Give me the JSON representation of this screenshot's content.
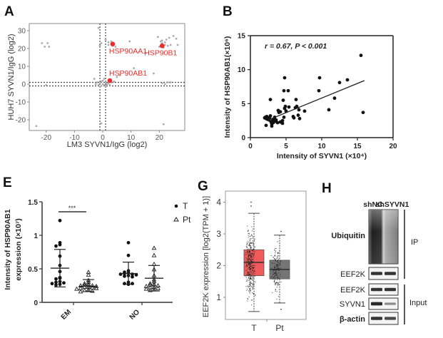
{
  "chart_data": [
    {
      "panel": "A",
      "type": "scatter",
      "xlabel": "LM3 SYVN1/IgG (log2)",
      "ylabel": "HUH7 SYVN1/IgG (log2)",
      "xlim": [
        -26,
        29
      ],
      "ylim": [
        -26,
        34
      ],
      "xticks": [
        -20,
        -10,
        0,
        10,
        20
      ],
      "yticks": [
        30,
        20,
        10,
        0,
        -10,
        -20
      ],
      "threshold_lines": {
        "x": [
          -1,
          1
        ],
        "y": [
          1,
          -1
        ]
      },
      "grey_points": [
        [
          -21.5,
          23
        ],
        [
          -20.5,
          21
        ],
        [
          -19.5,
          23
        ],
        [
          -19,
          21
        ],
        [
          -23.5,
          -23.5
        ],
        [
          -1.5,
          31.5
        ],
        [
          -1,
          21.5
        ],
        [
          -0.5,
          23
        ],
        [
          1,
          25
        ],
        [
          2,
          22
        ],
        [
          3,
          24
        ],
        [
          3.5,
          21.5
        ],
        [
          2,
          23.5
        ],
        [
          4.5,
          21
        ],
        [
          9.5,
          24
        ],
        [
          19.5,
          26.5
        ],
        [
          20,
          21
        ],
        [
          20.5,
          24
        ],
        [
          21,
          23
        ],
        [
          22,
          22
        ],
        [
          22.5,
          25
        ],
        [
          23,
          21.5
        ],
        [
          21.5,
          20.5
        ],
        [
          23.5,
          26
        ],
        [
          24,
          22
        ],
        [
          25,
          27
        ],
        [
          26,
          25.5
        ],
        [
          26.5,
          22
        ],
        [
          22,
          23.5
        ],
        [
          21,
          24.5
        ],
        [
          20.8,
          22.5
        ],
        [
          11,
          9
        ],
        [
          18,
          6
        ],
        [
          5,
          4
        ],
        [
          6,
          5
        ],
        [
          21,
          0.5
        ],
        [
          22,
          0
        ],
        [
          23,
          1
        ],
        [
          24,
          1
        ],
        [
          21.5,
          -22.5
        ],
        [
          -0.5,
          -22
        ],
        [
          -3,
          3
        ],
        [
          -2,
          1
        ],
        [
          -1,
          0.5
        ],
        [
          -0.5,
          -1
        ],
        [
          0,
          2
        ],
        [
          0,
          0
        ],
        [
          0.5,
          -0.5
        ],
        [
          1,
          1
        ],
        [
          1.5,
          0
        ],
        [
          2,
          0.5
        ],
        [
          -1.5,
          -0.5
        ],
        [
          0.5,
          3
        ],
        [
          1,
          -1
        ],
        [
          3,
          1
        ],
        [
          4,
          1.5
        ],
        [
          -2.5,
          0
        ],
        [
          -1,
          -1.5
        ],
        [
          -0.5,
          1.5
        ],
        [
          2.5,
          -0.5
        ],
        [
          -20,
          -0.5
        ]
      ],
      "highlighted": [
        {
          "label": "HSP90AA1",
          "x": 3.5,
          "y": 22.5
        },
        {
          "label": "HSP90B1",
          "x": 21,
          "y": 21.5
        },
        {
          "label": "HSP90AB1",
          "x": 2.5,
          "y": 2
        }
      ],
      "highlight_color": "#ee2b2b"
    },
    {
      "panel": "B",
      "type": "scatter",
      "xlabel": "Intensity of SYVN1 (×10⁴)",
      "ylabel": "Intensity of HSP90AB1(×10⁶)",
      "xlim": [
        0,
        20
      ],
      "ylim": [
        0,
        15
      ],
      "xticks": [
        0,
        5,
        10,
        15,
        20
      ],
      "yticks": [
        0,
        5,
        10,
        15
      ],
      "annotation": "r = 0.67, P < 0.001",
      "fit_line": {
        "x": [
          2.5,
          16
        ],
        "y": [
          2.6,
          8.4
        ]
      },
      "points": [
        [
          2.0,
          2.9
        ],
        [
          2.1,
          3.0
        ],
        [
          2.2,
          2.8
        ],
        [
          2.3,
          3.1
        ],
        [
          2.4,
          2.7
        ],
        [
          2.5,
          2.9
        ],
        [
          2.2,
          1.8
        ],
        [
          2.6,
          2.6
        ],
        [
          2.7,
          2.8
        ],
        [
          2.8,
          3.2
        ],
        [
          2.8,
          5.6
        ],
        [
          2.9,
          2.3
        ],
        [
          3.0,
          1.7
        ],
        [
          3.0,
          2.0
        ],
        [
          3.1,
          2.5
        ],
        [
          3.2,
          2.2
        ],
        [
          3.3,
          2.7
        ],
        [
          3.5,
          2.4
        ],
        [
          3.6,
          2.6
        ],
        [
          3.8,
          2.2
        ],
        [
          3.9,
          4.0
        ],
        [
          4.0,
          3.7
        ],
        [
          4.2,
          2.3
        ],
        [
          4.5,
          2.1
        ],
        [
          4.5,
          2.5
        ],
        [
          4.6,
          5.5
        ],
        [
          4.7,
          3.0
        ],
        [
          4.7,
          6.9
        ],
        [
          4.8,
          8.8
        ],
        [
          4.8,
          4.3
        ],
        [
          4.9,
          4.6
        ],
        [
          5.0,
          3.9
        ],
        [
          5.3,
          6.9
        ],
        [
          5.4,
          4.5
        ],
        [
          6.0,
          3.1
        ],
        [
          6.1,
          2.9
        ],
        [
          6.3,
          4.4
        ],
        [
          6.4,
          5.6
        ],
        [
          6.5,
          4.6
        ],
        [
          6.7,
          3.3
        ],
        [
          6.8,
          4.1
        ],
        [
          6.9,
          2.8
        ],
        [
          7.6,
          3.9
        ],
        [
          9.7,
          8.8
        ],
        [
          9.6,
          6.9
        ],
        [
          11.0,
          4.1
        ],
        [
          11.8,
          5.8
        ],
        [
          12.5,
          8.1
        ],
        [
          13.6,
          8.5
        ],
        [
          15.5,
          12.1
        ],
        [
          15.8,
          3.7
        ],
        [
          4.2,
          3.8
        ],
        [
          3.4,
          3.0
        ]
      ]
    },
    {
      "panel": "E",
      "type": "scatter",
      "ylabel": "Intensity of HSP90AB1 expression (×10⁷)",
      "ylim": [
        0,
        1.5
      ],
      "yticks": [
        0,
        0.5,
        1,
        1.5
      ],
      "categories": [
        "EM",
        "NO"
      ],
      "significance": {
        "groups": "EM T vs Pt",
        "label": "***"
      },
      "legend": [
        {
          "name": "T",
          "marker": "dot"
        },
        {
          "name": "Pt",
          "marker": "triangle"
        }
      ],
      "legend_position": "top-right",
      "series": [
        {
          "name": "T",
          "category": "EM",
          "mean": 0.51,
          "upper": 0.79,
          "lower": 0.23,
          "values": [
            1.22,
            0.89,
            0.86,
            0.84,
            0.69,
            0.55,
            0.46,
            0.37,
            0.36,
            0.35,
            0.31,
            0.3,
            0.29,
            0.28,
            0.27,
            0.26
          ]
        },
        {
          "name": "Pt",
          "category": "EM",
          "mean": 0.24,
          "upper": 0.34,
          "lower": 0.16,
          "values": [
            0.45,
            0.41,
            0.33,
            0.3,
            0.28,
            0.27,
            0.26,
            0.25,
            0.24,
            0.23,
            0.22,
            0.21,
            0.2,
            0.19,
            0.18,
            0.17,
            0.16,
            0.25,
            0.23,
            0.21
          ]
        },
        {
          "name": "T",
          "category": "NO",
          "mean": 0.43,
          "upper": 0.6,
          "lower": 0.27,
          "values": [
            0.89,
            0.7,
            0.47,
            0.45,
            0.44,
            0.43,
            0.42,
            0.42,
            0.41,
            0.4,
            0.39,
            0.38,
            0.3,
            0.28,
            0.28,
            0.27
          ]
        },
        {
          "name": "Pt",
          "category": "NO",
          "mean": 0.36,
          "upper": 0.55,
          "lower": 0.17,
          "values": [
            0.81,
            0.7,
            0.57,
            0.49,
            0.4,
            0.34,
            0.31,
            0.28,
            0.27,
            0.26,
            0.25,
            0.24,
            0.23,
            0.22,
            0.21,
            0.2,
            0.19,
            0.18
          ]
        }
      ]
    },
    {
      "panel": "G",
      "type": "box",
      "ylabel": "EEF2K expression [log2(TPM + 1)]",
      "ylim": [
        0.3,
        4.35
      ],
      "yticks": [
        1,
        2,
        3,
        4
      ],
      "categories": [
        "T",
        "Pt"
      ],
      "series": [
        {
          "name": "T",
          "color": "#f05a5a",
          "q1": 1.68,
          "median": 2.1,
          "q3": 2.5,
          "whisker_low": 0.55,
          "whisker_high": 3.65,
          "outliers": [
            4.0,
            3.88
          ],
          "n_points": 369
        },
        {
          "name": "Pt",
          "color": "#757575",
          "q1": 1.58,
          "median": 1.88,
          "q3": 2.17,
          "whisker_low": 0.82,
          "whisker_high": 2.96,
          "outliers": [
            3.08,
            0.62
          ],
          "n_points": 160
        }
      ]
    }
  ],
  "panels": {
    "A": "A",
    "B": "B",
    "E": "E",
    "G": "G",
    "H": "H"
  },
  "blot": {
    "columns": [
      "shNC",
      "shSYVN1"
    ],
    "rows": [
      "Ubiquitin",
      "EEF2K",
      "EEF2K",
      "SYVN1",
      "β-actin"
    ],
    "groups": [
      "IP",
      "Input"
    ],
    "band_intensity": {
      "Ubiquitin": [
        0.9,
        0.35
      ],
      "EEF2K_IP": [
        0.85,
        0.85
      ],
      "EEF2K_Input": [
        0.85,
        0.85
      ],
      "SYVN1": [
        0.9,
        0.45
      ],
      "beta_actin": [
        0.85,
        0.75
      ]
    }
  }
}
